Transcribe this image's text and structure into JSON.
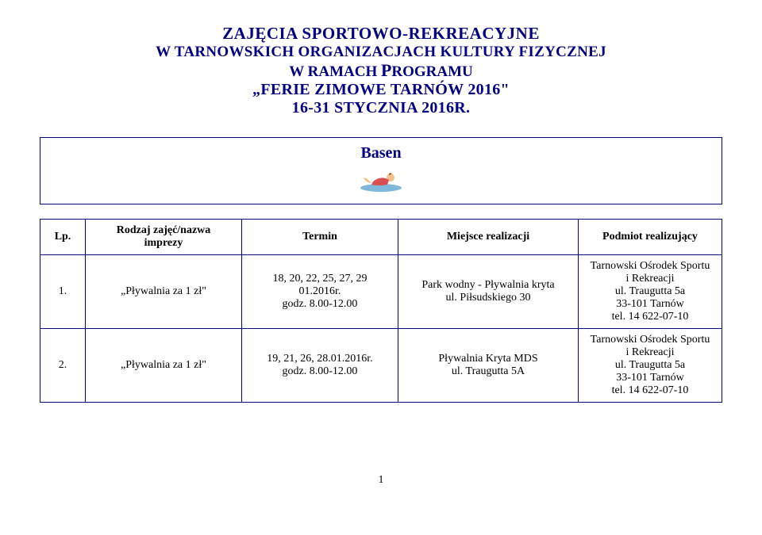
{
  "header": {
    "line1": "ZAJĘCIA SPORTOWO-REKREACYJNE",
    "line2": "W TARNOWSKICH ORGANIZACJACH KULTURY FIZYCZNEJ",
    "line3_pre": "W RAMACH ",
    "line3_cap": "P",
    "line3_rest": "ROGRAMU",
    "line4": "„FERIE ZIMOWE TARNÓW 2016\"",
    "line5": "16-31 STYCZNIA 2016R."
  },
  "section": {
    "title": "Basen"
  },
  "table": {
    "headers": {
      "lp": "Lp.",
      "rodzaj": "Rodzaj zajęć/nazwa\nimprezy",
      "termin": "Termin",
      "miejsce": "Miejsce realizacji",
      "podmiot": "Podmiot realizujący"
    },
    "rows": [
      {
        "lp": "1.",
        "rodzaj": "„Pływalnia za 1 zł\"",
        "termin": "18, 20, 22, 25, 27, 29\n01.2016r.\ngodz. 8.00-12.00",
        "miejsce": "Park wodny - Pływalnia kryta\nul. Piłsudskiego 30",
        "podmiot": "Tarnowski Ośrodek Sportu\ni Rekreacji\nul. Traugutta 5a\n33-101 Tarnów\ntel. 14 622-07-10"
      },
      {
        "lp": "2.",
        "rodzaj": "„Pływalnia za 1 zł\"",
        "termin": "19, 21, 26, 28.01.2016r.\ngodz. 8.00-12.00",
        "miejsce": "Pływalnia Kryta MDS\nul. Traugutta 5A",
        "podmiot": "Tarnowski Ośrodek Sportu\ni Rekreacji\nul. Traugutta 5a\n33-101 Tarnów\ntel. 14 622-07-10"
      }
    ]
  },
  "footer": {
    "page": "1"
  },
  "colors": {
    "navy": "#000080",
    "background": "#ffffff",
    "text": "#000000"
  }
}
